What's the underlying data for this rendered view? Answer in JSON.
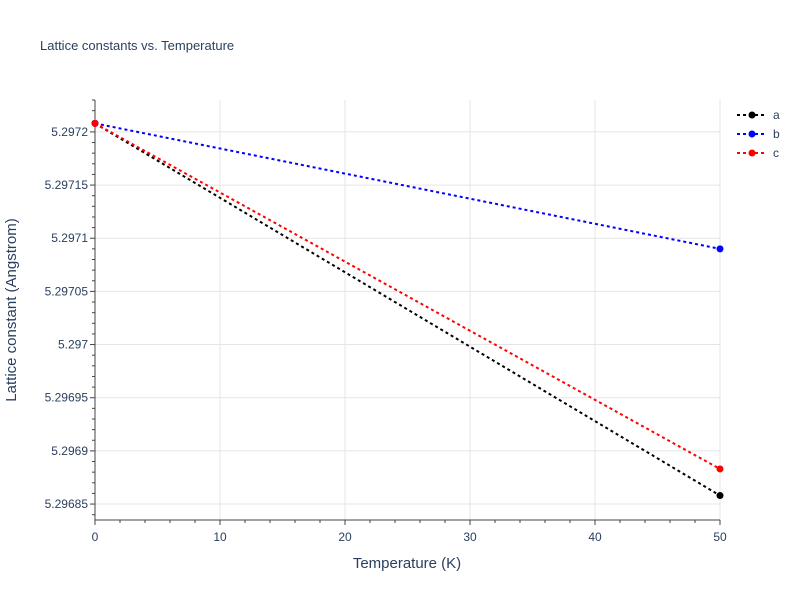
{
  "chart_data": {
    "type": "line",
    "title": "Lattice constants vs. Temperature",
    "xlabel": "Temperature (K)",
    "ylabel": "Lattice constant (Angstrom)",
    "xlim": [
      0,
      50
    ],
    "ylim": [
      5.296835,
      5.29723
    ],
    "x_ticks": [
      0,
      10,
      20,
      30,
      40,
      50
    ],
    "x_tick_labels": [
      "0",
      "10",
      "20",
      "30",
      "40",
      "50"
    ],
    "y_ticks": [
      5.29685,
      5.2969,
      5.29695,
      5.297,
      5.29705,
      5.2971,
      5.29715,
      5.2972
    ],
    "y_tick_labels": [
      "5.29685",
      "5.2969",
      "5.29695",
      "5.297",
      "5.29705",
      "5.2971",
      "5.29715",
      "5.2972"
    ],
    "grid": true,
    "legend_position": "top-right",
    "x": [
      0,
      50
    ],
    "series": [
      {
        "name": "a",
        "color": "#000000",
        "values": [
          5.297208,
          5.296858
        ]
      },
      {
        "name": "b",
        "color": "#0000ff",
        "values": [
          5.297208,
          5.29709
        ]
      },
      {
        "name": "c",
        "color": "#ff0000",
        "values": [
          5.297208,
          5.296883
        ]
      }
    ]
  }
}
